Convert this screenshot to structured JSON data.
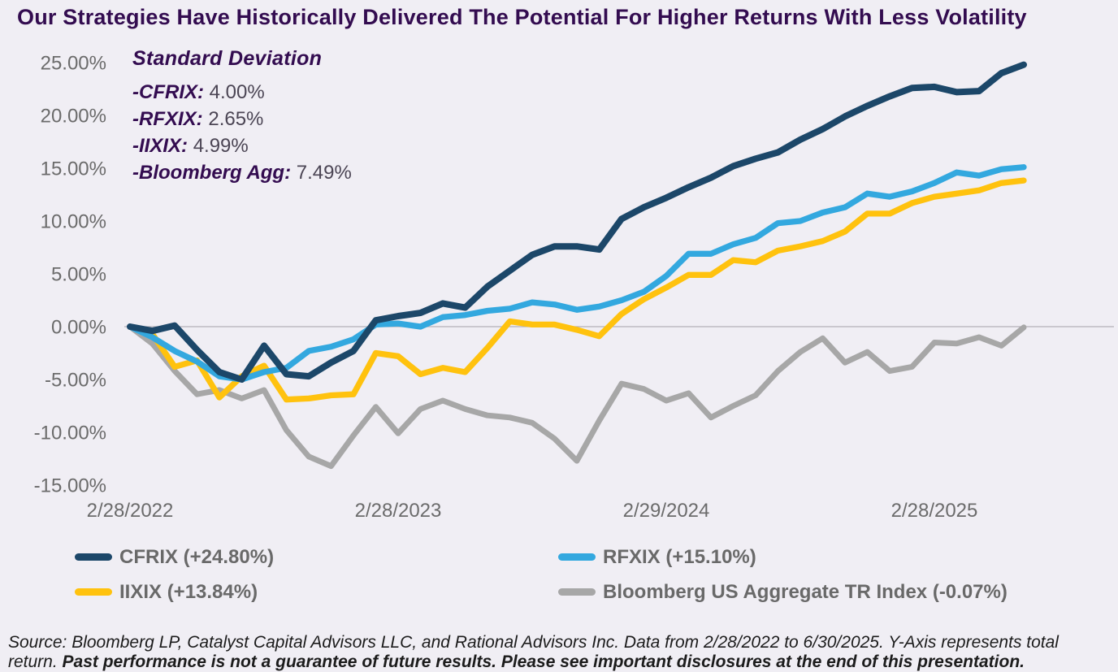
{
  "page": {
    "title": "Our Strategies Have Historically Delivered The Potential For Higher Returns With Less Volatility",
    "background_color": "#F0EEF4",
    "title_color": "#330C50"
  },
  "annotation": {
    "heading": "Standard Deviation",
    "items": [
      {
        "label": "-CFRIX:",
        "value": "4.00%"
      },
      {
        "label": "-RFXIX:",
        "value": "2.65%"
      },
      {
        "label": "-IIXIX:",
        "value": "4.99%"
      },
      {
        "label": "-Bloomberg Agg:",
        "value": "7.49%"
      }
    ]
  },
  "chart_data": {
    "type": "line",
    "title": "Our Strategies Have Historically Delivered The Potential For Higher Returns With Less Volatility",
    "xlabel": "",
    "ylabel": "total return (%)",
    "interval": "monthly",
    "date_range": {
      "start": "2/28/2022",
      "end": "6/30/2025"
    },
    "x_axis": {
      "tick_labels": [
        "2/28/2022",
        "2/28/2023",
        "2/29/2024",
        "2/28/2025"
      ],
      "tick_months": [
        0,
        12,
        24,
        36
      ]
    },
    "y_axis": {
      "tick_labels": [
        "25.00%",
        "20.00%",
        "15.00%",
        "10.00%",
        "5.00%",
        "0.00%",
        "-5.00%",
        "-10.00%",
        "-15.00%"
      ],
      "tick_values": [
        25,
        20,
        15,
        10,
        5,
        0,
        -5,
        -10,
        -15
      ],
      "ylim": [
        -15,
        25
      ],
      "format": "percent"
    },
    "grid": "zero-line-only",
    "legend_position": "bottom",
    "series": [
      {
        "name": "CFRIX",
        "legend_label": "CFRIX (+24.80%)",
        "color": "#1C4769",
        "final_return_pct": 24.8,
        "std_dev_pct": 4.0,
        "values": [
          0,
          -0.4,
          0.1,
          -2.2,
          -4.3,
          -5.0,
          -1.8,
          -4.5,
          -4.7,
          -3.4,
          -2.3,
          0.6,
          1.0,
          1.3,
          2.2,
          1.8,
          3.8,
          5.3,
          6.8,
          7.6,
          7.6,
          7.3,
          10.2,
          11.3,
          12.2,
          13.2,
          14.1,
          15.2,
          15.9,
          16.5,
          17.7,
          18.7,
          19.9,
          20.9,
          21.8,
          22.6,
          22.7,
          22.2,
          22.3,
          24.0,
          24.8
        ]
      },
      {
        "name": "RFXIX",
        "legend_label": "RFXIX (+15.10%)",
        "color": "#33A8DF",
        "final_return_pct": 15.1,
        "std_dev_pct": 2.65,
        "values": [
          0,
          -1.0,
          -2.3,
          -3.3,
          -4.7,
          -5.0,
          -4.3,
          -3.9,
          -2.3,
          -1.9,
          -1.2,
          0.2,
          0.3,
          0.0,
          0.9,
          1.1,
          1.5,
          1.7,
          2.3,
          2.1,
          1.6,
          1.9,
          2.5,
          3.3,
          4.8,
          6.9,
          6.9,
          7.8,
          8.4,
          9.8,
          10.0,
          10.8,
          11.3,
          12.6,
          12.3,
          12.8,
          13.6,
          14.6,
          14.3,
          14.9,
          15.1
        ]
      },
      {
        "name": "IIXIX",
        "legend_label": "IIXIX (+13.84%)",
        "color": "#FFC20E",
        "final_return_pct": 13.84,
        "std_dev_pct": 4.99,
        "values": [
          0,
          -0.7,
          -3.8,
          -3.2,
          -6.7,
          -4.7,
          -3.7,
          -6.9,
          -6.8,
          -6.5,
          -6.4,
          -2.5,
          -2.8,
          -4.5,
          -3.9,
          -4.3,
          -2.0,
          0.5,
          0.2,
          0.2,
          -0.3,
          -0.9,
          1.2,
          2.6,
          3.7,
          4.9,
          4.9,
          6.3,
          6.1,
          7.2,
          7.6,
          8.1,
          9.0,
          10.7,
          10.7,
          11.7,
          12.3,
          12.6,
          12.9,
          13.6,
          13.84
        ]
      },
      {
        "name": "Bloomberg US Aggregate TR Index",
        "legend_label": "Bloomberg US Aggregate TR Index (-0.07%)",
        "color": "#A7A7A7",
        "final_return_pct": -0.07,
        "std_dev_pct": 7.49,
        "values": [
          0,
          -1.6,
          -4.2,
          -6.4,
          -6.0,
          -6.8,
          -6.0,
          -9.8,
          -12.3,
          -13.2,
          -10.3,
          -7.6,
          -10.1,
          -7.8,
          -7.0,
          -7.8,
          -8.4,
          -8.6,
          -9.1,
          -10.6,
          -12.7,
          -8.9,
          -5.4,
          -5.9,
          -7.0,
          -6.3,
          -8.6,
          -7.5,
          -6.5,
          -4.2,
          -2.4,
          -1.1,
          -3.4,
          -2.4,
          -4.2,
          -3.8,
          -1.5,
          -1.6,
          -1.0,
          -1.8,
          -0.07
        ]
      }
    ]
  },
  "footer": {
    "regular": "Source: Bloomberg LP, Catalyst Capital Advisors LLC, and Rational Advisors Inc. Data from 2/28/2022 to 6/30/2025. Y-Axis represents total return. ",
    "bold": "Past performance is not a guarantee of future results. Please see important disclosures at the end of this presentation."
  }
}
